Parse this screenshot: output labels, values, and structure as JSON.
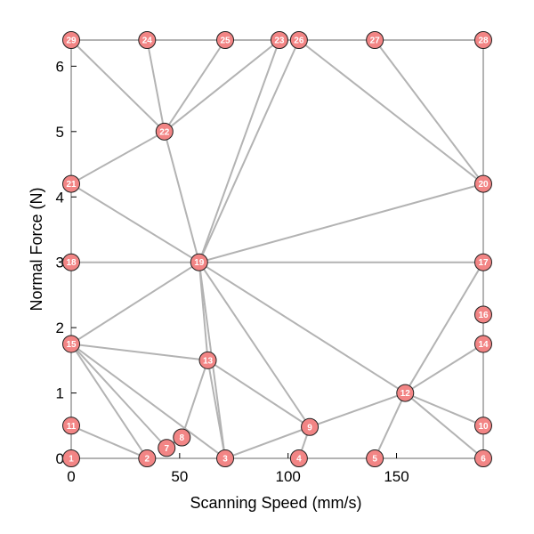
{
  "chart_data": {
    "type": "scatter",
    "xlabel": "Scanning Speed (mm/s)",
    "ylabel": "Normal Force (N)",
    "xlim": [
      0,
      190
    ],
    "ylim": [
      0,
      6.4
    ],
    "xticks": [
      0,
      50,
      100,
      150
    ],
    "yticks": [
      0,
      1,
      2,
      3,
      4,
      5,
      6
    ],
    "grid": false,
    "node_color": "#f28585",
    "edge_color": "#b3b3b3",
    "nodes": [
      {
        "id": 1,
        "label": "1",
        "x": 0,
        "y": 0
      },
      {
        "id": 2,
        "label": "2",
        "x": 35,
        "y": 0
      },
      {
        "id": 3,
        "label": "3",
        "x": 71,
        "y": 0
      },
      {
        "id": 4,
        "label": "4",
        "x": 105,
        "y": 0
      },
      {
        "id": 5,
        "label": "5",
        "x": 140,
        "y": 0
      },
      {
        "id": 6,
        "label": "6",
        "x": 190,
        "y": 0
      },
      {
        "id": 7,
        "label": "7",
        "x": 44,
        "y": 0.16
      },
      {
        "id": 8,
        "label": "8",
        "x": 51,
        "y": 0.32
      },
      {
        "id": 9,
        "label": "9",
        "x": 110,
        "y": 0.48
      },
      {
        "id": 10,
        "label": "10",
        "x": 190,
        "y": 0.5
      },
      {
        "id": 11,
        "label": "11",
        "x": 0,
        "y": 0.5
      },
      {
        "id": 12,
        "label": "12",
        "x": 154,
        "y": 1.0
      },
      {
        "id": 13,
        "label": "13",
        "x": 63,
        "y": 1.5
      },
      {
        "id": 14,
        "label": "14",
        "x": 190,
        "y": 1.75
      },
      {
        "id": 15,
        "label": "15",
        "x": 0,
        "y": 1.75
      },
      {
        "id": 16,
        "label": "16",
        "x": 190,
        "y": 2.2
      },
      {
        "id": 17,
        "label": "17",
        "x": 190,
        "y": 3.0
      },
      {
        "id": 18,
        "label": "18",
        "x": 0,
        "y": 3.0
      },
      {
        "id": 19,
        "label": "19",
        "x": 59,
        "y": 3.0
      },
      {
        "id": 20,
        "label": "20",
        "x": 190,
        "y": 4.2
      },
      {
        "id": 21,
        "label": "21",
        "x": 0,
        "y": 4.2
      },
      {
        "id": 22,
        "label": "22",
        "x": 43,
        "y": 5.0
      },
      {
        "id": 23,
        "label": "23",
        "x": 96,
        "y": 6.4
      },
      {
        "id": 24,
        "label": "24",
        "x": 35,
        "y": 6.4
      },
      {
        "id": 25,
        "label": "25",
        "x": 71,
        "y": 6.4
      },
      {
        "id": 26,
        "label": "26",
        "x": 105,
        "y": 6.4
      },
      {
        "id": 27,
        "label": "27",
        "x": 140,
        "y": 6.4
      },
      {
        "id": 28,
        "label": "28",
        "x": 190,
        "y": 6.4
      },
      {
        "id": 29,
        "label": "29",
        "x": 0,
        "y": 6.4
      }
    ],
    "edges": [
      [
        1,
        2
      ],
      [
        2,
        3
      ],
      [
        3,
        4
      ],
      [
        4,
        5
      ],
      [
        5,
        6
      ],
      [
        6,
        10
      ],
      [
        10,
        14
      ],
      [
        14,
        16
      ],
      [
        16,
        17
      ],
      [
        17,
        20
      ],
      [
        20,
        28
      ],
      [
        28,
        27
      ],
      [
        27,
        26
      ],
      [
        26,
        23
      ],
      [
        23,
        25
      ],
      [
        25,
        24
      ],
      [
        24,
        29
      ],
      [
        29,
        21
      ],
      [
        21,
        18
      ],
      [
        18,
        15
      ],
      [
        15,
        11
      ],
      [
        11,
        1
      ],
      [
        11,
        2
      ],
      [
        15,
        2
      ],
      [
        15,
        7
      ],
      [
        15,
        3
      ],
      [
        15,
        13
      ],
      [
        15,
        19
      ],
      [
        7,
        8
      ],
      [
        8,
        13
      ],
      [
        13,
        3
      ],
      [
        13,
        9
      ],
      [
        13,
        19
      ],
      [
        3,
        9
      ],
      [
        9,
        4
      ],
      [
        9,
        12
      ],
      [
        9,
        19
      ],
      [
        12,
        5
      ],
      [
        12,
        6
      ],
      [
        12,
        10
      ],
      [
        12,
        14
      ],
      [
        12,
        17
      ],
      [
        12,
        19
      ],
      [
        19,
        17
      ],
      [
        19,
        18
      ],
      [
        19,
        21
      ],
      [
        19,
        22
      ],
      [
        19,
        20
      ],
      [
        19,
        23
      ],
      [
        19,
        26
      ],
      [
        19,
        3
      ],
      [
        22,
        21
      ],
      [
        22,
        24
      ],
      [
        22,
        25
      ],
      [
        22,
        23
      ],
      [
        22,
        29
      ],
      [
        26,
        20
      ],
      [
        27,
        20
      ]
    ]
  }
}
